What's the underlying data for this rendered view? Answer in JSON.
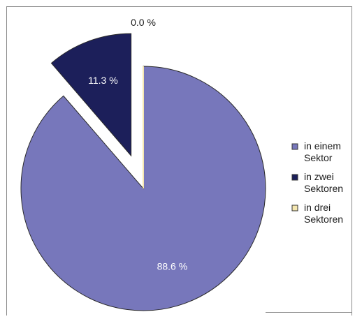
{
  "chart_data": {
    "type": "pie",
    "title": "",
    "legend_position": "right",
    "labels": [
      "in einem Sektor",
      "in zwei Sektoren",
      "in drei Sektoren"
    ],
    "values": [
      88.6,
      11.3,
      0.0
    ],
    "data_labels": [
      "88.6 %",
      "11.3 %",
      "0.0 %"
    ],
    "legend_lines": [
      [
        "in einem",
        "Sektor"
      ],
      [
        "in zwei",
        "Sektoren"
      ],
      [
        "in drei",
        "Sektoren"
      ]
    ],
    "colors": [
      "#7777bb",
      "#1c1f5a",
      "#f5e7b0"
    ],
    "exploded_slice": "in zwei Sektoren"
  }
}
